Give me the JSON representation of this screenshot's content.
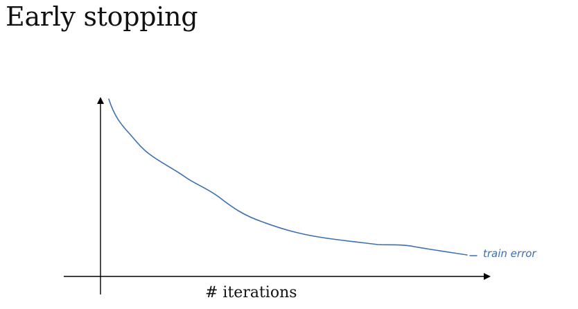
{
  "slide": {
    "title": "Early stopping"
  },
  "chart_data": {
    "type": "line",
    "title": "",
    "xlabel": "# iterations",
    "ylabel": "",
    "grid": false,
    "series": [
      {
        "name": "train error",
        "color": "#3a6fb0"
      }
    ]
  },
  "colors": {
    "axis": "#000000",
    "curve": "#3a6fb0"
  }
}
